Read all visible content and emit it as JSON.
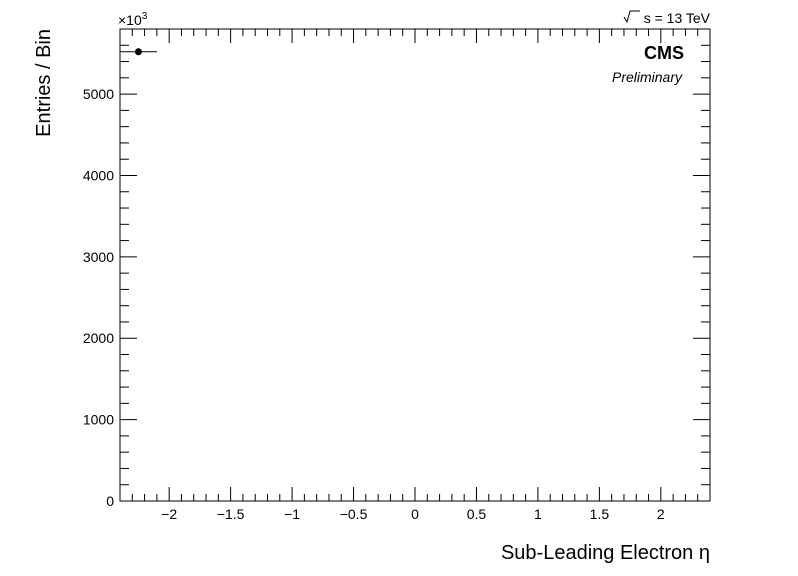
{
  "chart_data": {
    "type": "scatter",
    "xlabel": "Sub-Leading Electron η",
    "ylabel": "Entries / Bin",
    "xlim": [
      -2.4,
      2.4
    ],
    "ylim": [
      0,
      5800
    ],
    "x_ticks": [
      -2,
      -1.5,
      -1,
      -0.5,
      0,
      0.5,
      1,
      1.5,
      2
    ],
    "x_tick_labels": [
      "−2",
      "−1.5",
      "−1",
      "−0.5",
      "0",
      "0.5",
      "1",
      "1.5",
      "2"
    ],
    "y_ticks": [
      0,
      1000,
      2000,
      3000,
      4000,
      5000
    ],
    "y_tick_labels": [
      "0",
      "1000",
      "2000",
      "3000",
      "4000",
      "5000"
    ],
    "y_multiplier_label": "×10",
    "y_multiplier_exponent": "3",
    "points": [
      {
        "x": -2.25,
        "y": 5520,
        "x_err": 0.15,
        "y_err": 0
      }
    ],
    "grid": false
  },
  "annotations": {
    "experiment": "CMS",
    "status": "Preliminary",
    "energy_prefix": "s",
    "energy_text": " = 13 TeV"
  }
}
